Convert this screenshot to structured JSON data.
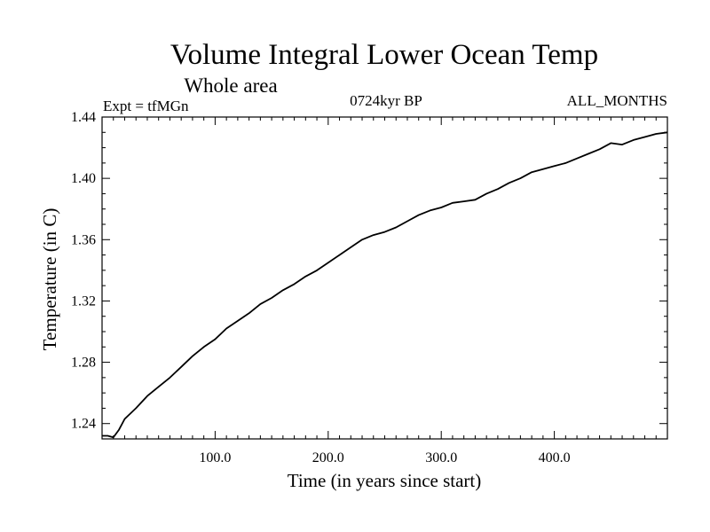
{
  "chart_data": {
    "type": "line",
    "title": "Volume Integral Lower Ocean Temp",
    "subtitle": "Whole area",
    "annotations": {
      "left": "Expt = tfMGn",
      "center": "0724kyr BP",
      "right": "ALL_MONTHS"
    },
    "xlabel": "Time (in years since start)",
    "ylabel": "Temperature (in C)",
    "xlim": [
      0,
      500
    ],
    "ylim": [
      1.23,
      1.44
    ],
    "xticks": [
      100,
      200,
      300,
      400
    ],
    "xtick_labels": [
      "100.0",
      "200.0",
      "300.0",
      "400.0"
    ],
    "yticks": [
      1.24,
      1.28,
      1.32,
      1.36,
      1.4,
      1.44
    ],
    "ytick_labels": [
      "1.24",
      "1.28",
      "1.32",
      "1.36",
      "1.40",
      "1.44"
    ],
    "grid": false,
    "series": [
      {
        "x": [
          0,
          5,
          10,
          15,
          20,
          30,
          40,
          50,
          60,
          70,
          80,
          90,
          100,
          110,
          120,
          130,
          140,
          150,
          160,
          170,
          180,
          190,
          200,
          210,
          220,
          230,
          240,
          250,
          260,
          270,
          280,
          290,
          300,
          310,
          320,
          330,
          340,
          350,
          360,
          370,
          380,
          390,
          400,
          410,
          420,
          430,
          440,
          450,
          460,
          470,
          480,
          490,
          500
        ],
        "values": [
          1.232,
          1.232,
          1.231,
          1.236,
          1.243,
          1.25,
          1.258,
          1.264,
          1.27,
          1.277,
          1.284,
          1.29,
          1.295,
          1.302,
          1.307,
          1.312,
          1.318,
          1.322,
          1.327,
          1.331,
          1.336,
          1.34,
          1.345,
          1.35,
          1.355,
          1.36,
          1.363,
          1.365,
          1.368,
          1.372,
          1.376,
          1.379,
          1.381,
          1.384,
          1.385,
          1.386,
          1.39,
          1.393,
          1.397,
          1.4,
          1.404,
          1.406,
          1.408,
          1.41,
          1.413,
          1.416,
          1.419,
          1.423,
          1.422,
          1.425,
          1.427,
          1.429,
          1.43
        ]
      }
    ]
  }
}
